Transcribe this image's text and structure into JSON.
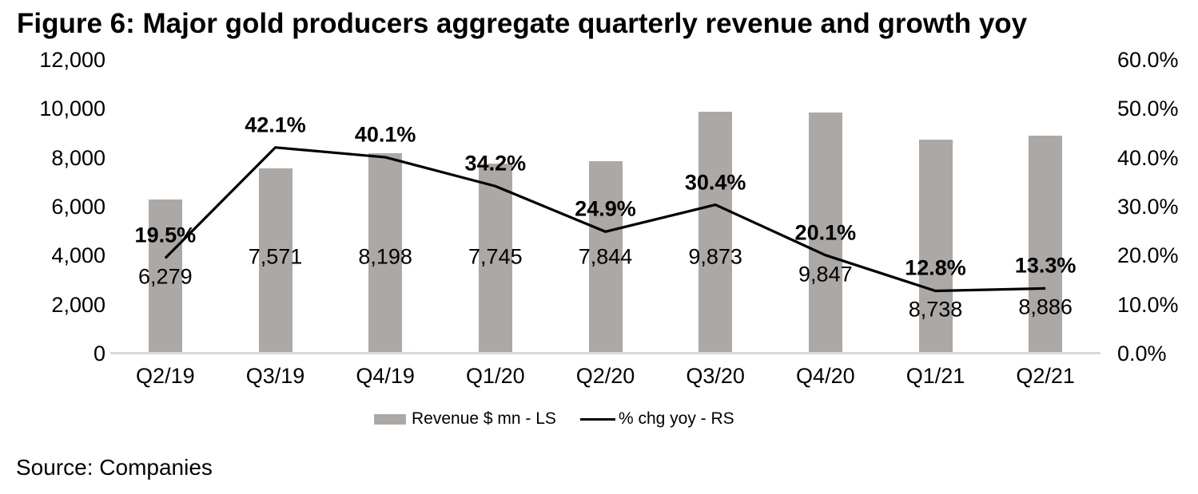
{
  "title": "Figure 6: Major gold producers aggregate quarterly revenue and growth yoy",
  "source": "Source: Companies",
  "colors": {
    "bar": "#aba8a6",
    "line": "#000000",
    "axis_line": "#d9d9d9",
    "text": "#000000"
  },
  "chart_data": {
    "type": "bar",
    "subtype": "bar+line dual axis",
    "title": "Figure 6: Major gold producers aggregate quarterly revenue and growth yoy",
    "categories": [
      "Q2/19",
      "Q3/19",
      "Q4/19",
      "Q1/20",
      "Q2/20",
      "Q3/20",
      "Q4/20",
      "Q1/21",
      "Q2/21"
    ],
    "series": [
      {
        "name": "Revenue $ mn - LS",
        "type": "bar",
        "axis": "left",
        "values": [
          6279,
          7571,
          8198,
          7745,
          7844,
          9873,
          9847,
          8738,
          8886
        ],
        "labels": [
          "6,279",
          "7,571",
          "8,198",
          "7,745",
          "7,844",
          "9,873",
          "9,847",
          "8,738",
          "8,886"
        ]
      },
      {
        "name": "% chg yoy - RS",
        "type": "line",
        "axis": "right",
        "values": [
          19.5,
          42.1,
          40.1,
          34.2,
          24.9,
          30.4,
          20.1,
          12.8,
          13.3
        ],
        "labels": [
          "19.5%",
          "42.1%",
          "40.1%",
          "34.2%",
          "24.9%",
          "30.4%",
          "20.1%",
          "12.8%",
          "13.3%"
        ]
      }
    ],
    "left_axis": {
      "min": 0,
      "max": 12000,
      "ticks": [
        "12,000",
        "10,000",
        "8,000",
        "6,000",
        "4,000",
        "2,000",
        "0"
      ]
    },
    "right_axis": {
      "min": 0,
      "max": 60,
      "ticks": [
        "60.0%",
        "50.0%",
        "40.0%",
        "30.0%",
        "20.0%",
        "10.0%",
        "0.0%"
      ]
    },
    "grid": false,
    "legend_position": "bottom"
  }
}
